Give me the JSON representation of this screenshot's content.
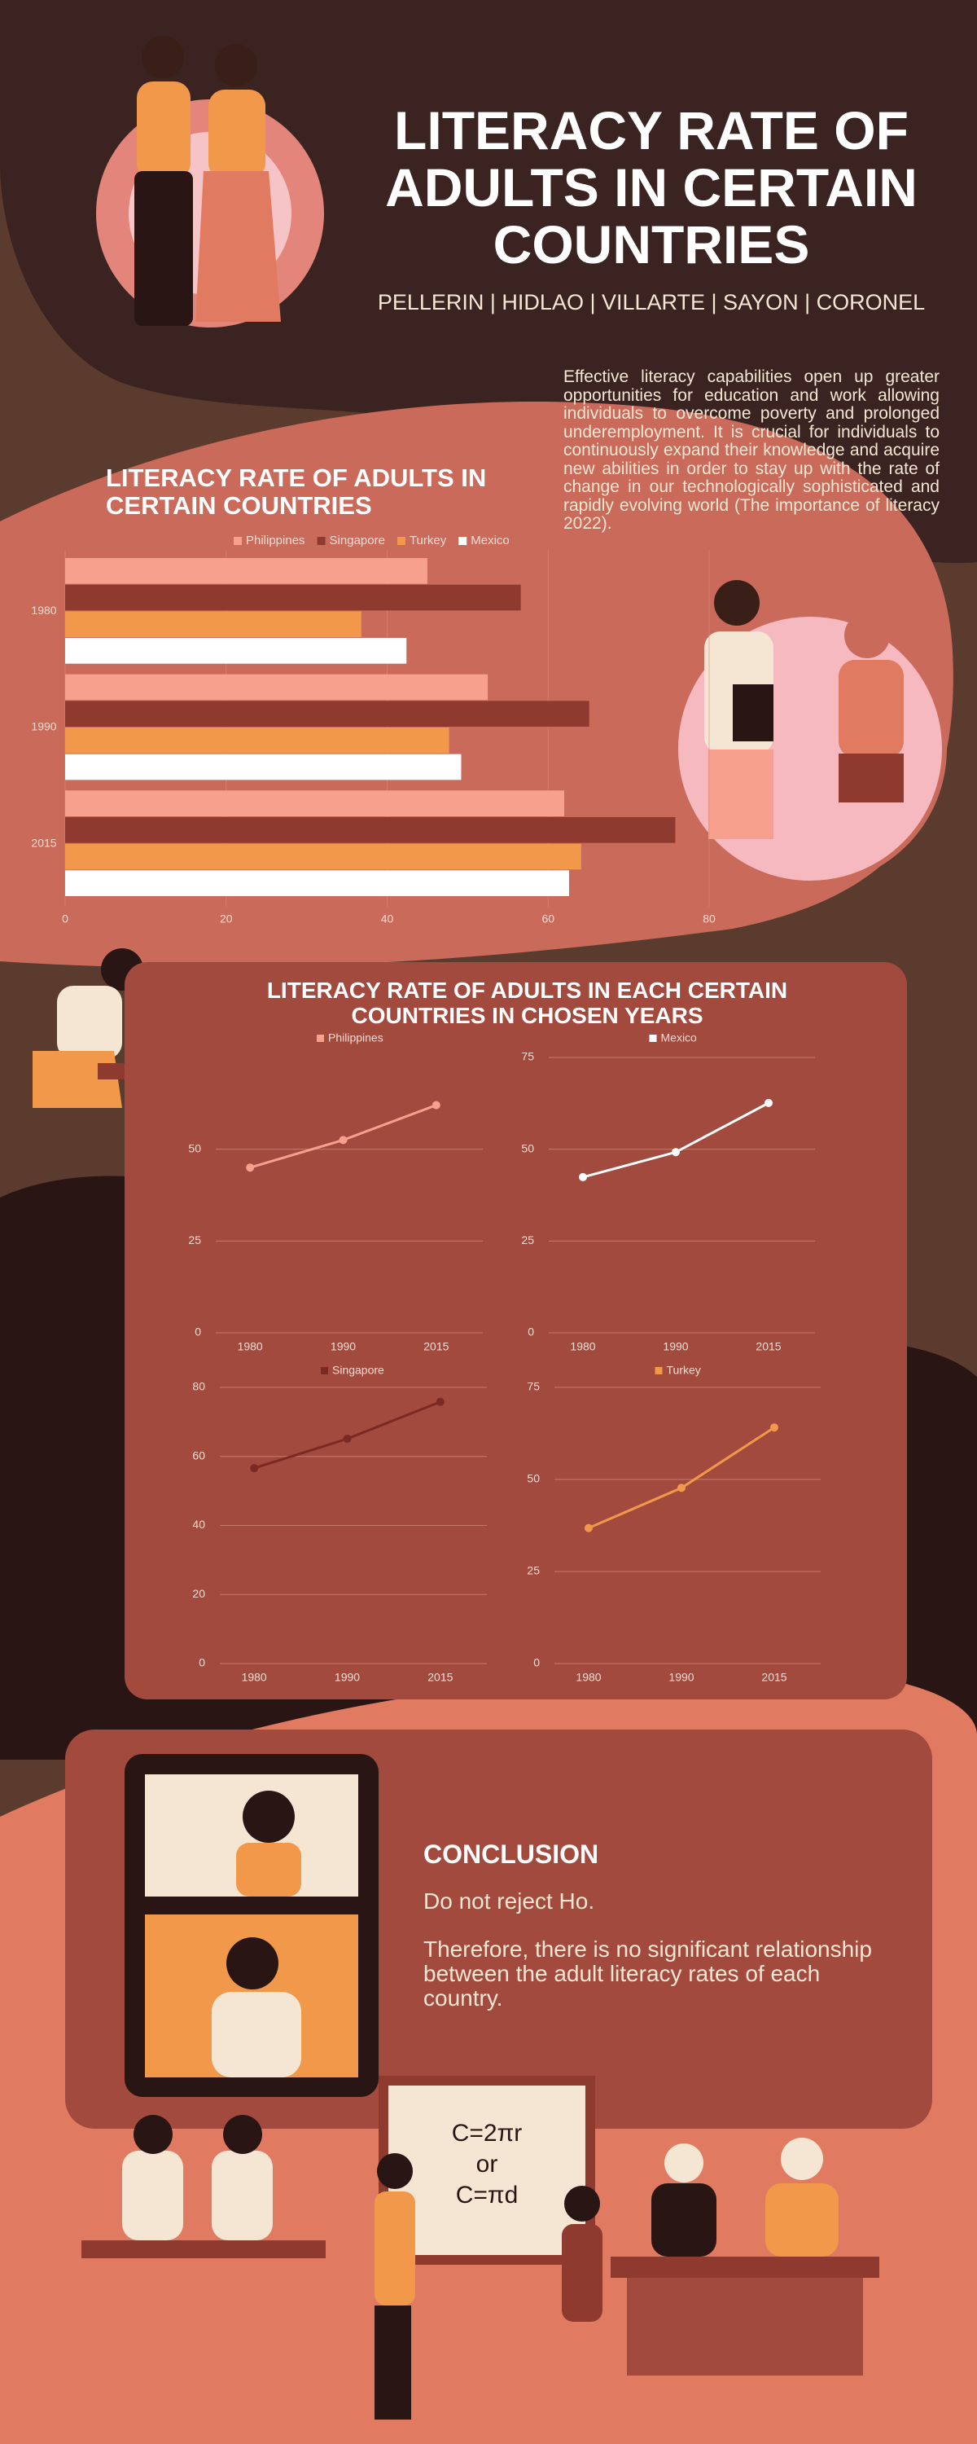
{
  "header": {
    "title": "LITERACY RATE OF ADULTS IN CERTAIN COUNTRIES",
    "authors": "PELLERIN | HIDLAO | VILLARTE | SAYON | CORONEL"
  },
  "intro": "Effective literacy capabilities open up greater opportunities for education and work allowing individuals to overcome poverty and prolonged underemployment. It is crucial for individuals to continuously expand their knowledge and acquire new abilities in order to stay up with the rate of change in our technologically sophisticated and rapidly evolving world (The importance of literacy 2022).",
  "panel_title": "LITERACY RATE OF ADULTS IN EACH CERTAIN COUNTRIES IN CHOSEN YEARS",
  "chart_data": [
    {
      "type": "bar",
      "orientation": "horizontal",
      "title": "LITERACY RATE OF ADULTS IN CERTAIN COUNTRIES",
      "categories": [
        "1980",
        "1990",
        "2015"
      ],
      "series": [
        {
          "name": "Philippines",
          "color": "#f7a08e",
          "values": [
            45,
            52.5,
            62
          ]
        },
        {
          "name": "Singapore",
          "color": "#8e3a2e",
          "values": [
            56.6,
            65.1,
            75.8
          ]
        },
        {
          "name": "Turkey",
          "color": "#f2984a",
          "values": [
            36.8,
            47.7,
            64.1
          ]
        },
        {
          "name": "Mexico",
          "color": "#ffffff",
          "values": [
            42.4,
            49.2,
            62.6
          ]
        }
      ],
      "xlim": [
        0,
        80
      ],
      "xticks": [
        0,
        20,
        40,
        60,
        80
      ],
      "grid": true
    },
    {
      "type": "line",
      "categories": [
        "1980",
        "1990",
        "2015"
      ],
      "series": [
        {
          "name": "Philippines",
          "color": "#f7a08e",
          "values": [
            45,
            52.5,
            62
          ]
        }
      ],
      "ylim": [
        0,
        75
      ],
      "yticks": [
        0,
        25,
        50
      ],
      "grid": true
    },
    {
      "type": "line",
      "categories": [
        "1980",
        "1990",
        "2015"
      ],
      "series": [
        {
          "name": "Mexico",
          "color": "#ffffff",
          "values": [
            42.4,
            49.2,
            62.6
          ]
        }
      ],
      "ylim": [
        0,
        75
      ],
      "yticks": [
        0,
        25,
        50,
        75
      ],
      "grid": true
    },
    {
      "type": "line",
      "categories": [
        "1980",
        "1990",
        "2015"
      ],
      "series": [
        {
          "name": "Singapore",
          "color": "#7a2a22",
          "values": [
            56.6,
            65.1,
            75.8
          ]
        }
      ],
      "ylim": [
        0,
        80
      ],
      "yticks": [
        0,
        20,
        40,
        60,
        80
      ],
      "grid": true
    },
    {
      "type": "line",
      "categories": [
        "1980",
        "1990",
        "2015"
      ],
      "series": [
        {
          "name": "Turkey",
          "color": "#f2984a",
          "values": [
            36.8,
            47.7,
            64.1
          ]
        }
      ],
      "ylim": [
        0,
        75
      ],
      "yticks": [
        0,
        25,
        50,
        75
      ],
      "grid": true
    }
  ],
  "conclusion": {
    "heading": "CONCLUSION",
    "lines": [
      "Do not reject Ho.",
      "Therefore, there is no significant relationship between the adult literacy rates of each country."
    ]
  },
  "whiteboard": [
    "C=2πr",
    "or",
    "C=πd"
  ]
}
